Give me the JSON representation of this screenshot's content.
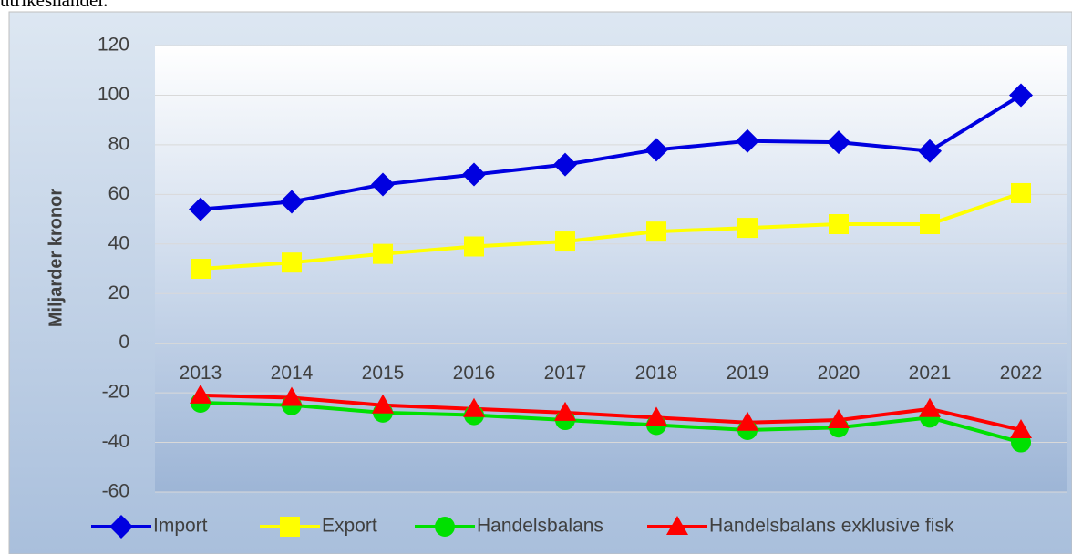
{
  "caption": "utrikeshandel.",
  "chart_data": {
    "type": "line",
    "y_label": "Miljarder kronor",
    "categories": [
      "2013",
      "2014",
      "2015",
      "2016",
      "2017",
      "2018",
      "2019",
      "2020",
      "2021",
      "2022"
    ],
    "series": [
      {
        "name": "Import",
        "color": "#0000e0",
        "marker": "diamond",
        "values": [
          54,
          57,
          64,
          68,
          72,
          78,
          81.5,
          81,
          77.5,
          100
        ]
      },
      {
        "name": "Export",
        "color": "#ffff00",
        "marker": "square",
        "values": [
          30,
          32.5,
          36,
          39,
          41,
          45,
          46.5,
          48,
          48,
          60.5
        ]
      },
      {
        "name": "Handelsbalans",
        "color": "#00e000",
        "marker": "circle",
        "values": [
          -24,
          -25,
          -28,
          -29,
          -31,
          -33,
          -35,
          -34,
          -30,
          -40
        ]
      },
      {
        "name": "Handelsbalans exklusive fisk",
        "color": "#ff0000",
        "marker": "triangle",
        "values": [
          -21,
          -22,
          -25,
          -26.5,
          -28,
          -30,
          -32,
          -31,
          -26.5,
          -35
        ]
      }
    ],
    "ylim": [
      -60,
      120
    ],
    "yticks": [
      -60,
      -40,
      -20,
      0,
      20,
      40,
      60,
      80,
      100,
      120
    ],
    "grid": true,
    "legend": "bottom"
  }
}
